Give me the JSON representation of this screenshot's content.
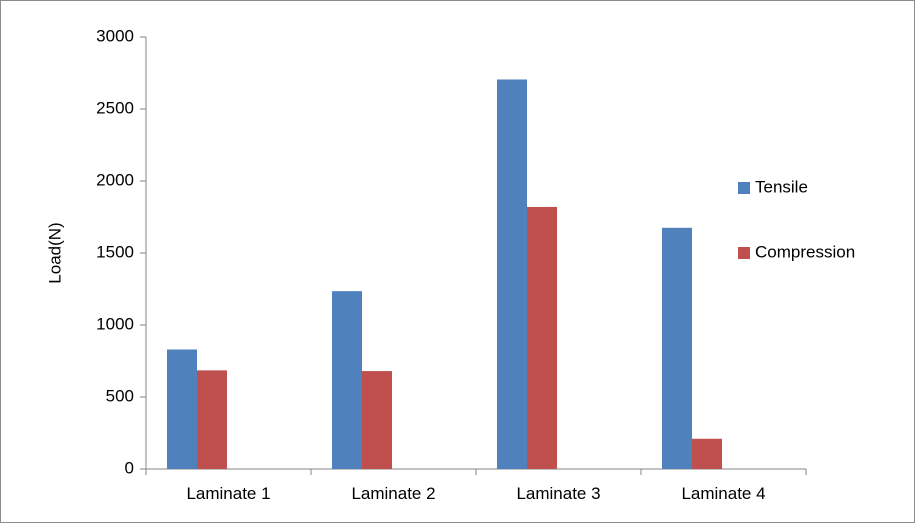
{
  "chart_data": {
    "type": "bar",
    "title": "",
    "xlabel": "",
    "ylabel": "Load(N)",
    "ylim": [
      0,
      3000
    ],
    "yticks": [
      0,
      500,
      1000,
      1500,
      2000,
      2500,
      3000
    ],
    "grid": false,
    "legend_position": "right",
    "categories": [
      "Laminate 1",
      "Laminate 2",
      "Laminate 3",
      "Laminate 4"
    ],
    "series": [
      {
        "name": "Tensile",
        "color": "#4f81bd",
        "values": [
          830,
          1235,
          2705,
          1675
        ]
      },
      {
        "name": "Compression",
        "color": "#c0504d",
        "values": [
          685,
          680,
          1820,
          210
        ]
      }
    ]
  }
}
